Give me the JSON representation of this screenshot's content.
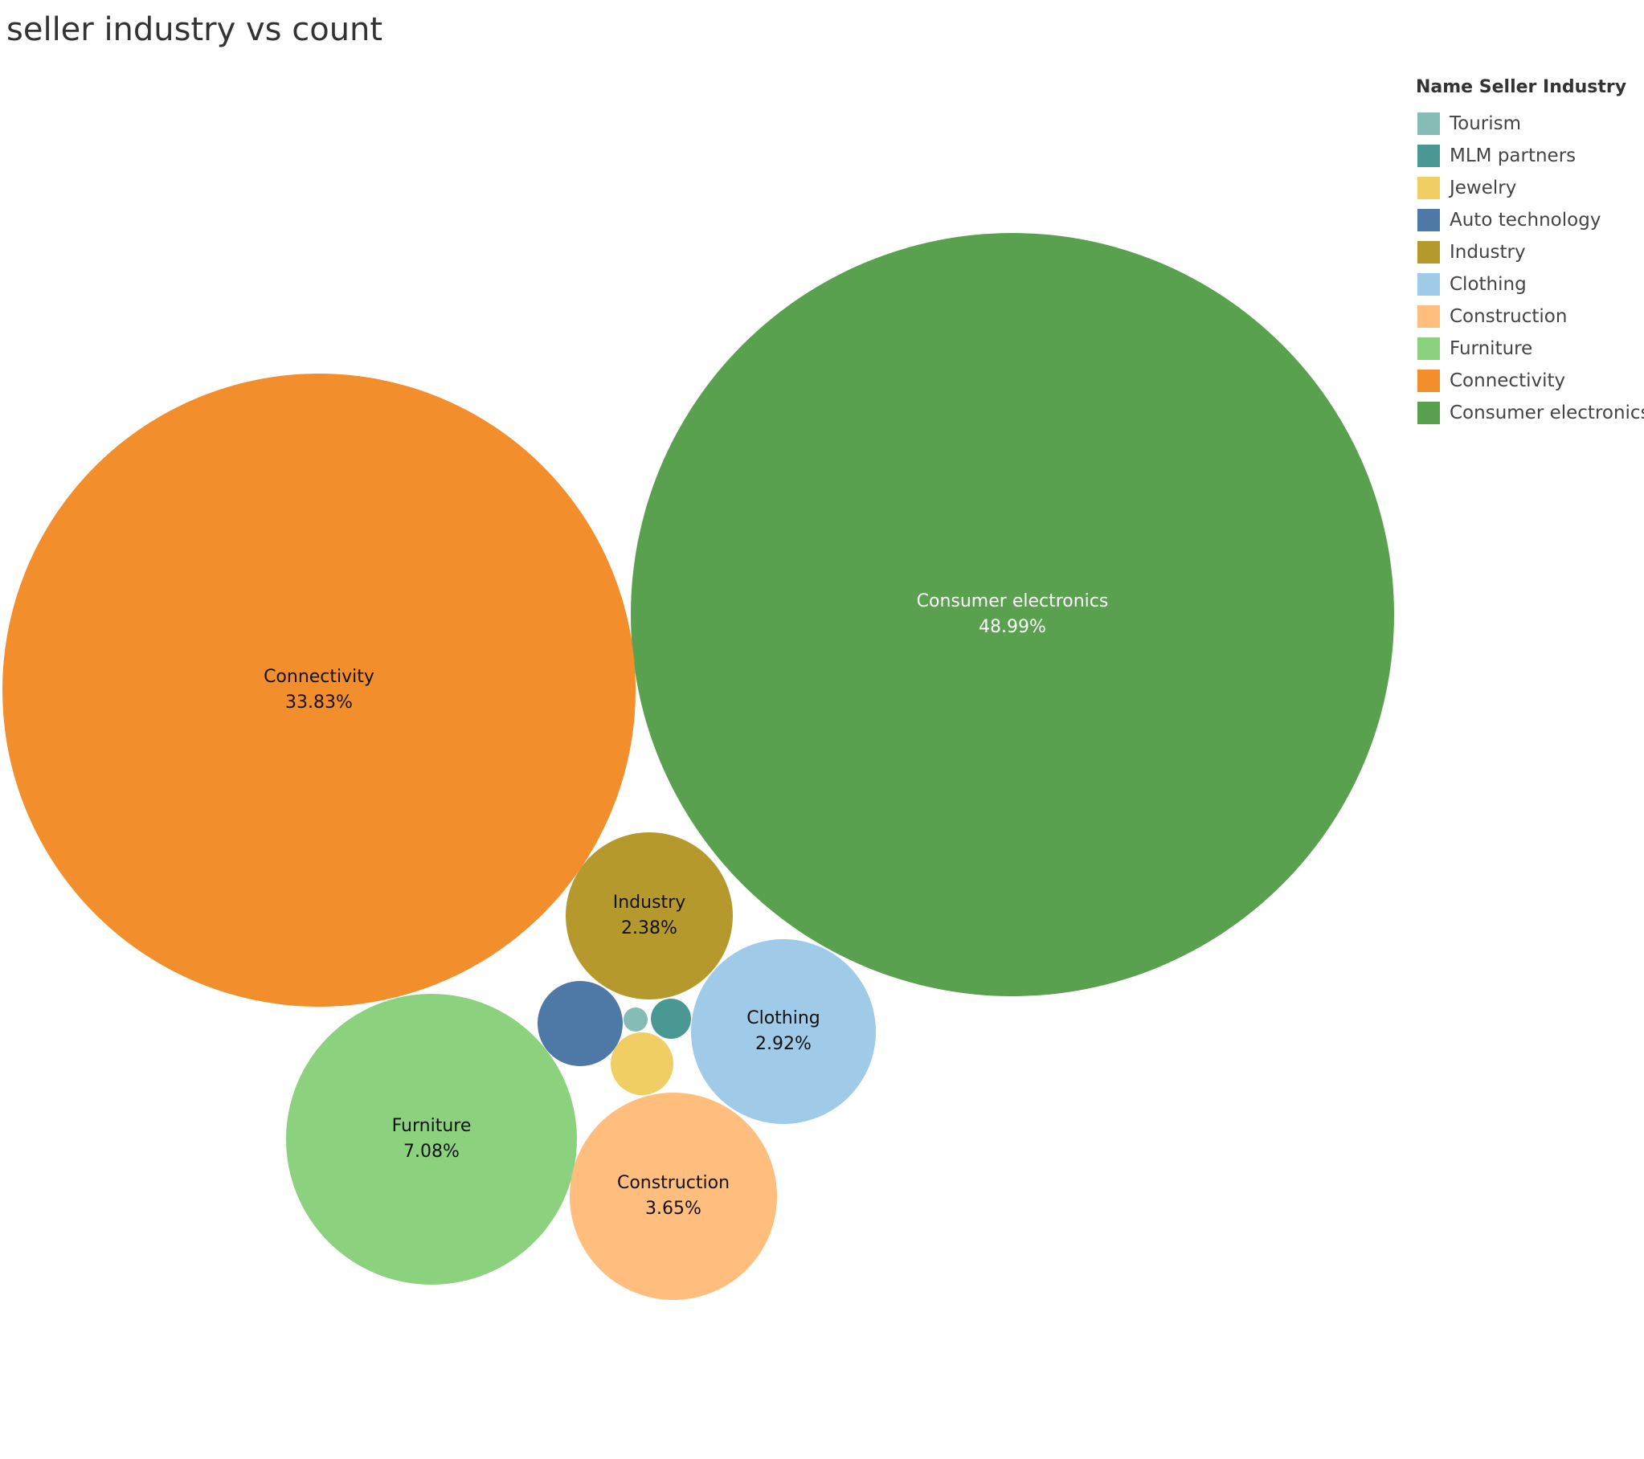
{
  "chart_data": {
    "type": "bubble",
    "title": "seller industry vs count",
    "legend": {
      "title": "Name Seller Industry",
      "placement": "top-right"
    },
    "series": [
      {
        "name": "Tourism",
        "label": "",
        "value": null,
        "color": "#86bcb6"
      },
      {
        "name": "MLM partners",
        "label": "",
        "value": null,
        "color": "#499894"
      },
      {
        "name": "Jewelry",
        "label": "",
        "value": null,
        "color": "#f1ce63"
      },
      {
        "name": "Auto technology",
        "label": "",
        "value": null,
        "color": "#4e79a7"
      },
      {
        "name": "Industry",
        "label": "2.38%",
        "value": 2.38,
        "color": "#b6992d"
      },
      {
        "name": "Clothing",
        "label": "2.92%",
        "value": 2.92,
        "color": "#a0cbe8"
      },
      {
        "name": "Construction",
        "label": "3.65%",
        "value": 3.65,
        "color": "#ffbe7d"
      },
      {
        "name": "Furniture",
        "label": "7.08%",
        "value": 7.08,
        "color": "#8cd17d"
      },
      {
        "name": "Connectivity",
        "label": "33.83%",
        "value": 33.83,
        "color": "#f28e2b"
      },
      {
        "name": "Consumer electronics",
        "label": "48.99%",
        "value": 48.99,
        "color": "#59a14f"
      }
    ]
  }
}
